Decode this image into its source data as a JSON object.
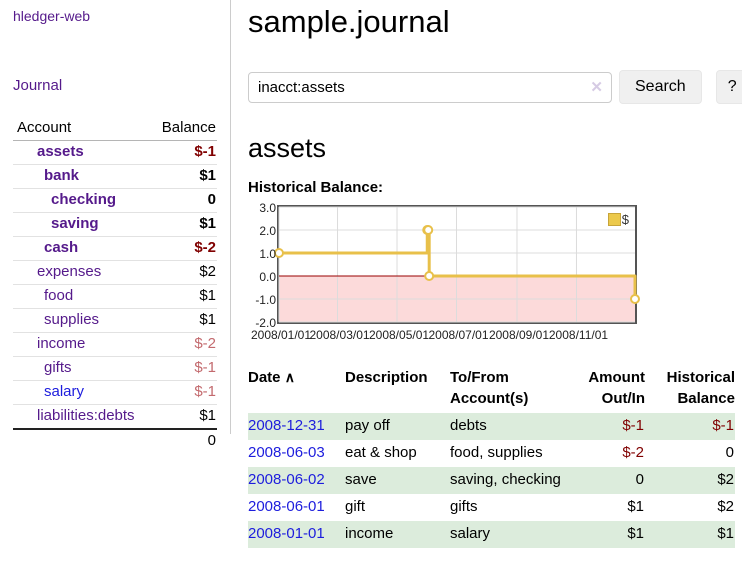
{
  "app": {
    "title": "hledger-web"
  },
  "nav": {
    "journal": "Journal"
  },
  "sidebar_accounts": {
    "headers": {
      "account": "Account",
      "balance": "Balance"
    },
    "rows": [
      {
        "name": "assets",
        "balance": "$-1",
        "indent": 1,
        "bold": true,
        "balance_class": "neg"
      },
      {
        "name": "bank",
        "balance": "$1",
        "indent": 2,
        "bold": true,
        "balance_class": ""
      },
      {
        "name": "checking",
        "balance": "0",
        "indent": 3,
        "bold": true,
        "balance_class": ""
      },
      {
        "name": "saving",
        "balance": "$1",
        "indent": 3,
        "bold": true,
        "balance_class": ""
      },
      {
        "name": "cash",
        "balance": "$-2",
        "indent": 2,
        "bold": true,
        "balance_class": "neg"
      },
      {
        "name": "expenses",
        "balance": "$2",
        "indent": 1,
        "bold": false,
        "balance_class": ""
      },
      {
        "name": "food",
        "balance": "$1",
        "indent": 2,
        "bold": false,
        "balance_class": ""
      },
      {
        "name": "supplies",
        "balance": "$1",
        "indent": 2,
        "bold": false,
        "balance_class": ""
      },
      {
        "name": "income",
        "balance": "$-2",
        "indent": 1,
        "bold": false,
        "balance_class": "neg-light"
      },
      {
        "name": "gifts",
        "balance": "$-1",
        "indent": 2,
        "bold": false,
        "balance_class": "neg-light"
      },
      {
        "name": "salary",
        "balance": "$-1",
        "indent": 2,
        "bold": false,
        "balance_class": "neg-light",
        "link_class": "blue"
      },
      {
        "name": "liabilities:debts",
        "balance": "$1",
        "indent": 1,
        "bold": false,
        "balance_class": ""
      }
    ],
    "total": "0"
  },
  "header": {
    "title": "sample.journal"
  },
  "search": {
    "value": "inacct:assets",
    "clear_icon": "✕",
    "button": "Search",
    "help_button": "?"
  },
  "main": {
    "account_heading": "assets",
    "chart_title": "Historical Balance:"
  },
  "chart_data": {
    "type": "line",
    "step": true,
    "title": "Historical Balance",
    "series": [
      {
        "name": "$",
        "color": "#e8c04a",
        "points": [
          {
            "date": "2008-01-01",
            "value": 1
          },
          {
            "date": "2008-06-01",
            "value": 2
          },
          {
            "date": "2008-06-02",
            "value": 2
          },
          {
            "date": "2008-06-03",
            "value": 0
          },
          {
            "date": "2008-12-31",
            "value": -1
          }
        ]
      }
    ],
    "x_ticks": [
      "2008/01/01",
      "2008/03/01",
      "2008/05/01",
      "2008/07/01",
      "2008/09/01",
      "2008/11/01"
    ],
    "y_ticks": [
      "3.0",
      "2.0",
      "1.0",
      "0.0",
      "-1.0",
      "-2.0"
    ],
    "xlim": [
      "2008-01-01",
      "2008-12-31"
    ],
    "ylim": [
      -2,
      3
    ],
    "grid": true,
    "grid_color": "#dcdcdc",
    "negative_fill": "#fcdada",
    "zero_line_color": "#990000",
    "legend_position": "top-right"
  },
  "register": {
    "headers": {
      "date": "Date",
      "description": "Description",
      "account": "To/From Account(s)",
      "amount": "Amount Out/In",
      "balance": "Historical Balance"
    },
    "sort_icon": "∧",
    "rows": [
      {
        "date": "2008-12-31",
        "description": "pay off",
        "accounts": "debts",
        "amount": "$-1",
        "amount_class": "neg",
        "balance": "$-1",
        "balance_class": "neg",
        "shade": true
      },
      {
        "date": "2008-06-03",
        "description": "eat & shop",
        "accounts": "food, supplies",
        "amount": "$-2",
        "amount_class": "neg",
        "balance": "0",
        "balance_class": "",
        "shade": false
      },
      {
        "date": "2008-06-02",
        "description": "save",
        "accounts": "saving, checking",
        "amount": "0",
        "amount_class": "",
        "balance": "$2",
        "balance_class": "",
        "shade": true
      },
      {
        "date": "2008-06-01",
        "description": "gift",
        "accounts": "gifts",
        "amount": "$1",
        "amount_class": "",
        "balance": "$2",
        "balance_class": "",
        "shade": false
      },
      {
        "date": "2008-01-01",
        "description": "income",
        "accounts": "salary",
        "amount": "$1",
        "amount_class": "",
        "balance": "$1",
        "balance_class": "",
        "shade": true
      }
    ]
  }
}
